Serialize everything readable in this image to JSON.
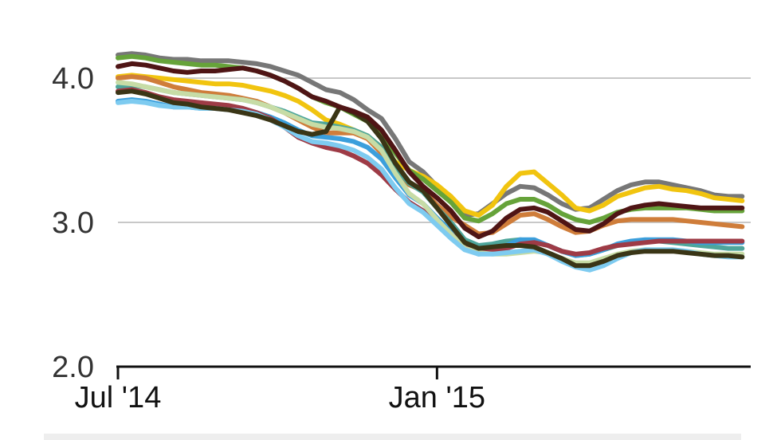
{
  "chart_data": {
    "type": "line",
    "title": "",
    "xlabel": "",
    "ylabel": "",
    "x_start": "2014-07-01",
    "x_end": "2015-06-30",
    "ylim": [
      2.0,
      4.3
    ],
    "y_ticks": [
      2.0,
      3.0,
      4.0
    ],
    "y_tick_labels": [
      "2.0",
      "3.0",
      "4.0"
    ],
    "x_ticks": [
      "2014-07-01",
      "2015-01-01"
    ],
    "x_tick_labels": [
      "Jul '14",
      "Jan '15"
    ],
    "grid": "horizontal",
    "legend": "none",
    "x": [
      "2014-07-01",
      "2014-07-09",
      "2014-07-17",
      "2014-07-25",
      "2014-08-02",
      "2014-08-10",
      "2014-08-18",
      "2014-08-26",
      "2014-09-03",
      "2014-09-11",
      "2014-09-19",
      "2014-09-27",
      "2014-10-05",
      "2014-10-13",
      "2014-10-21",
      "2014-10-29",
      "2014-11-06",
      "2014-11-14",
      "2014-11-22",
      "2014-11-30",
      "2014-12-08",
      "2014-12-16",
      "2014-12-24",
      "2015-01-01",
      "2015-01-09",
      "2015-01-17",
      "2015-01-25",
      "2015-02-02",
      "2015-02-10",
      "2015-02-18",
      "2015-02-26",
      "2015-03-06",
      "2015-03-14",
      "2015-03-22",
      "2015-03-30",
      "2015-04-07",
      "2015-04-15",
      "2015-04-23",
      "2015-05-01",
      "2015-05-09",
      "2015-05-17",
      "2015-05-25",
      "2015-06-02",
      "2015-06-10",
      "2015-06-18",
      "2015-06-26"
    ],
    "series": [
      {
        "color": "#777777",
        "values": [
          4.16,
          4.17,
          4.16,
          4.14,
          4.13,
          4.13,
          4.12,
          4.12,
          4.12,
          4.11,
          4.1,
          4.08,
          4.05,
          4.02,
          3.97,
          3.92,
          3.9,
          3.85,
          3.78,
          3.72,
          3.58,
          3.42,
          3.35,
          3.25,
          3.18,
          3.05,
          3.06,
          3.13,
          3.2,
          3.25,
          3.24,
          3.19,
          3.13,
          3.09,
          3.1,
          3.16,
          3.22,
          3.26,
          3.28,
          3.28,
          3.26,
          3.24,
          3.22,
          3.19,
          3.18,
          3.18
        ]
      },
      {
        "color": "#f1c40f",
        "values": [
          4.01,
          4.02,
          4.01,
          4.0,
          3.99,
          3.98,
          3.97,
          3.96,
          3.96,
          3.95,
          3.93,
          3.91,
          3.88,
          3.84,
          3.78,
          3.71,
          3.68,
          3.64,
          3.6,
          3.52,
          3.42,
          3.36,
          3.32,
          3.26,
          3.18,
          3.08,
          3.05,
          3.12,
          3.25,
          3.34,
          3.35,
          3.27,
          3.19,
          3.1,
          3.08,
          3.12,
          3.18,
          3.21,
          3.24,
          3.25,
          3.23,
          3.22,
          3.2,
          3.17,
          3.16,
          3.15
        ]
      },
      {
        "color": "#66a33a",
        "values": [
          4.14,
          4.15,
          4.14,
          4.12,
          4.11,
          4.1,
          4.09,
          4.09,
          4.08,
          4.07,
          4.05,
          4.02,
          3.98,
          3.93,
          3.87,
          3.83,
          3.8,
          3.75,
          3.7,
          3.62,
          3.48,
          3.36,
          3.3,
          3.22,
          3.14,
          3.03,
          3.01,
          3.06,
          3.13,
          3.16,
          3.16,
          3.12,
          3.06,
          3.02,
          3.0,
          3.03,
          3.07,
          3.09,
          3.1,
          3.1,
          3.1,
          3.1,
          3.09,
          3.08,
          3.08,
          3.08
        ]
      },
      {
        "color": "#cf7d3a",
        "values": [
          4.0,
          4.01,
          4.0,
          3.97,
          3.94,
          3.92,
          3.9,
          3.89,
          3.88,
          3.86,
          3.84,
          3.8,
          3.76,
          3.71,
          3.66,
          3.62,
          3.62,
          3.62,
          3.58,
          3.48,
          3.36,
          3.26,
          3.22,
          3.12,
          3.04,
          2.98,
          2.92,
          2.93,
          2.99,
          3.05,
          3.06,
          3.02,
          2.97,
          2.93,
          2.94,
          2.98,
          3.01,
          3.02,
          3.02,
          3.02,
          3.02,
          3.01,
          3.0,
          2.99,
          2.98,
          2.97
        ]
      },
      {
        "color": "#4ea69b",
        "values": [
          3.94,
          3.95,
          3.94,
          3.92,
          3.9,
          3.89,
          3.88,
          3.87,
          3.86,
          3.85,
          3.83,
          3.8,
          3.77,
          3.73,
          3.69,
          3.68,
          3.66,
          3.64,
          3.6,
          3.52,
          3.38,
          3.27,
          3.21,
          3.1,
          3.0,
          2.88,
          2.84,
          2.85,
          2.87,
          2.88,
          2.87,
          2.84,
          2.8,
          2.77,
          2.78,
          2.81,
          2.84,
          2.86,
          2.87,
          2.87,
          2.86,
          2.85,
          2.84,
          2.83,
          2.82,
          2.82
        ]
      },
      {
        "color": "#3b9fdc",
        "values": [
          3.84,
          3.85,
          3.84,
          3.82,
          3.8,
          3.8,
          3.79,
          3.79,
          3.79,
          3.78,
          3.76,
          3.73,
          3.69,
          3.64,
          3.6,
          3.59,
          3.58,
          3.56,
          3.52,
          3.44,
          3.31,
          3.19,
          3.13,
          3.03,
          2.94,
          2.82,
          2.78,
          2.79,
          2.84,
          2.88,
          2.88,
          2.84,
          2.8,
          2.77,
          2.78,
          2.81,
          2.85,
          2.87,
          2.88,
          2.88,
          2.88,
          2.87,
          2.86,
          2.86,
          2.86,
          2.86
        ]
      },
      {
        "color": "#9e3b46",
        "values": [
          3.91,
          3.92,
          3.9,
          3.87,
          3.85,
          3.84,
          3.83,
          3.82,
          3.81,
          3.79,
          3.76,
          3.72,
          3.66,
          3.59,
          3.55,
          3.52,
          3.5,
          3.46,
          3.41,
          3.33,
          3.23,
          3.14,
          3.08,
          3.0,
          2.92,
          2.84,
          2.81,
          2.8,
          2.82,
          2.85,
          2.86,
          2.84,
          2.8,
          2.78,
          2.79,
          2.82,
          2.84,
          2.85,
          2.86,
          2.87,
          2.87,
          2.87,
          2.87,
          2.87,
          2.87,
          2.87
        ]
      },
      {
        "color": "#c7dca6",
        "values": [
          3.97,
          3.96,
          3.94,
          3.92,
          3.9,
          3.89,
          3.88,
          3.87,
          3.86,
          3.85,
          3.83,
          3.8,
          3.76,
          3.72,
          3.68,
          3.66,
          3.65,
          3.63,
          3.59,
          3.5,
          3.34,
          3.2,
          3.13,
          3.02,
          2.92,
          2.82,
          2.79,
          2.78,
          2.78,
          2.79,
          2.8,
          2.79,
          2.75,
          2.72,
          2.72,
          2.75,
          2.78,
          2.8,
          2.81,
          2.81,
          2.81,
          2.8,
          2.79,
          2.78,
          2.78,
          2.78
        ]
      },
      {
        "color": "#7ecbf0",
        "values": [
          3.83,
          3.84,
          3.83,
          3.81,
          3.8,
          3.8,
          3.79,
          3.79,
          3.78,
          3.77,
          3.75,
          3.71,
          3.66,
          3.6,
          3.56,
          3.55,
          3.53,
          3.5,
          3.45,
          3.37,
          3.24,
          3.13,
          3.07,
          2.98,
          2.89,
          2.81,
          2.78,
          2.78,
          2.79,
          2.8,
          2.81,
          2.78,
          2.73,
          2.69,
          2.67,
          2.7,
          2.75,
          2.79,
          2.81,
          2.81,
          2.81,
          2.8,
          2.78,
          2.77,
          2.76,
          2.76
        ]
      },
      {
        "color": "#3a3516",
        "values": [
          3.9,
          3.91,
          3.89,
          3.86,
          3.83,
          3.82,
          3.8,
          3.79,
          3.78,
          3.76,
          3.74,
          3.71,
          3.67,
          3.63,
          3.61,
          3.63,
          3.8,
          3.76,
          3.7,
          3.58,
          3.41,
          3.28,
          3.22,
          3.1,
          2.98,
          2.86,
          2.82,
          2.83,
          2.84,
          2.84,
          2.83,
          2.79,
          2.75,
          2.7,
          2.7,
          2.73,
          2.77,
          2.79,
          2.8,
          2.8,
          2.8,
          2.79,
          2.78,
          2.77,
          2.77,
          2.76
        ]
      },
      {
        "color": "#4f1515",
        "values": [
          4.08,
          4.1,
          4.09,
          4.07,
          4.05,
          4.04,
          4.05,
          4.05,
          4.06,
          4.07,
          4.05,
          4.02,
          3.98,
          3.93,
          3.87,
          3.84,
          3.8,
          3.77,
          3.73,
          3.64,
          3.5,
          3.35,
          3.25,
          3.17,
          3.08,
          2.96,
          2.9,
          2.94,
          3.03,
          3.09,
          3.1,
          3.07,
          3.01,
          2.95,
          2.94,
          2.99,
          3.06,
          3.1,
          3.12,
          3.13,
          3.12,
          3.11,
          3.1,
          3.1,
          3.1,
          3.1
        ]
      }
    ]
  },
  "colors": {
    "axis": "#111111",
    "grid": "#c8c8c8",
    "tick_label": "#333333",
    "bottom_strip": "#eeeeee"
  }
}
